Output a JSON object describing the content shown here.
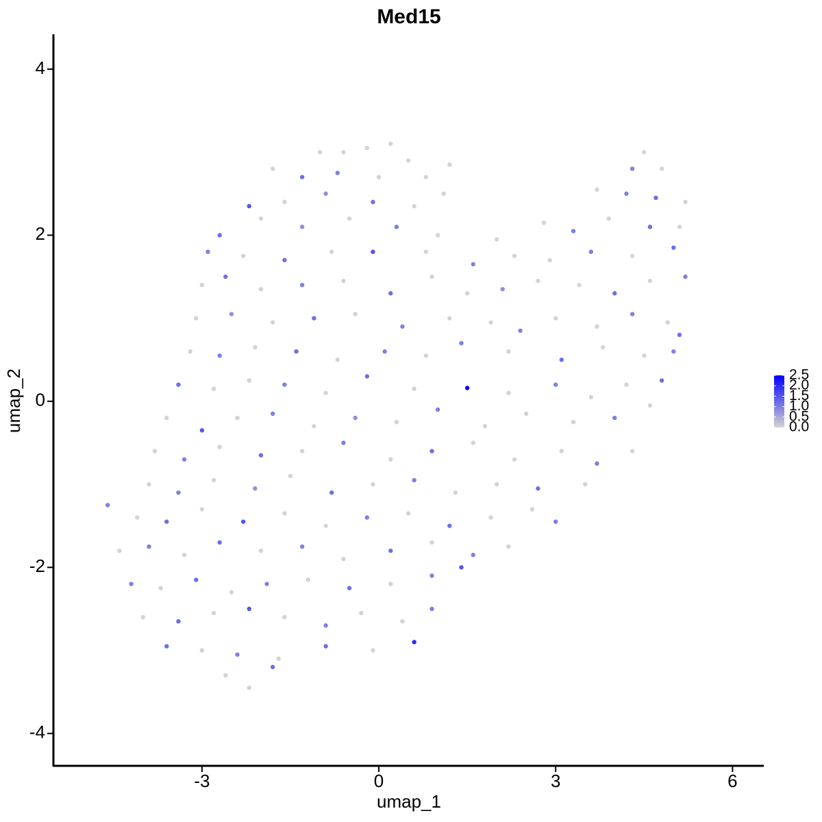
{
  "chart_data": {
    "type": "scatter",
    "title": "Med15",
    "x_label": "umap_1",
    "y_label": "umap_2",
    "xlim": [
      -5.52,
      6.53
    ],
    "ylim": [
      -4.39,
      4.42
    ],
    "xticks": [
      -3,
      0,
      3,
      6
    ],
    "yticks": [
      -4,
      -2,
      0,
      2,
      4
    ],
    "color_low": "#d3d3d3",
    "color_high": "#0000ff",
    "colorbar_lim": [
      0,
      2.5
    ],
    "colorbar_ticks": [
      {
        "value": 0,
        "label": "0.0"
      },
      {
        "value": 0.5,
        "label": "0.5"
      },
      {
        "value": 1,
        "label": "1.0"
      },
      {
        "value": 1.5,
        "label": "1.5"
      },
      {
        "value": 2,
        "label": "2.0"
      },
      {
        "value": 2.5,
        "label": "2.5"
      }
    ],
    "x": [
      -1.0,
      -0.6,
      -0.2,
      0.2,
      0.5,
      4.5,
      -1.8,
      -1.3,
      -0.7,
      0.0,
      0.8,
      1.2,
      4.3,
      4.8,
      -2.2,
      -1.6,
      -0.9,
      -0.1,
      0.6,
      1.1,
      3.7,
      4.2,
      4.7,
      5.2,
      -2.7,
      -2.0,
      -1.3,
      -0.5,
      0.3,
      1.0,
      2.0,
      2.8,
      3.3,
      3.9,
      4.6,
      5.1,
      -2.9,
      -2.3,
      -1.6,
      -0.8,
      -0.1,
      0.8,
      1.6,
      2.3,
      2.9,
      3.6,
      4.3,
      5.0,
      -3.0,
      -2.6,
      -2.0,
      -1.3,
      -0.6,
      0.2,
      0.9,
      1.5,
      2.1,
      2.7,
      3.4,
      4.0,
      4.6,
      5.2,
      -3.1,
      -2.5,
      -1.8,
      -1.1,
      -0.4,
      0.4,
      1.2,
      1.9,
      2.4,
      3.0,
      3.7,
      4.3,
      4.9,
      5.1,
      -3.2,
      -2.7,
      -2.1,
      -1.4,
      -0.7,
      0.1,
      0.8,
      1.4,
      2.2,
      3.1,
      3.8,
      4.5,
      5.0,
      -3.4,
      -2.8,
      -2.2,
      -1.6,
      -0.9,
      -0.2,
      0.6,
      1.5,
      2.2,
      3.0,
      3.6,
      4.2,
      4.8,
      -3.6,
      -3.0,
      -2.4,
      -1.8,
      -1.1,
      -0.4,
      0.3,
      1.0,
      1.8,
      2.5,
      3.3,
      4.0,
      4.6,
      -3.8,
      -3.3,
      -2.7,
      -2.0,
      -1.3,
      -0.6,
      0.2,
      0.9,
      1.6,
      2.3,
      3.1,
      3.7,
      4.3,
      -3.9,
      -3.4,
      -2.8,
      -2.1,
      -1.5,
      -0.8,
      -0.1,
      0.6,
      1.3,
      2.0,
      2.7,
      3.5,
      -4.6,
      -4.1,
      -3.6,
      -3.0,
      -2.3,
      -1.6,
      -0.9,
      -0.2,
      0.5,
      1.2,
      1.9,
      2.6,
      3.0,
      -4.4,
      -3.9,
      -3.3,
      -2.7,
      -2.0,
      -1.3,
      -0.6,
      0.2,
      0.9,
      1.6,
      2.2,
      -4.2,
      -3.7,
      -3.1,
      -2.5,
      -1.9,
      -1.2,
      -0.5,
      0.2,
      0.9,
      1.4,
      -4.0,
      -3.4,
      -2.8,
      -2.2,
      -1.6,
      -0.9,
      -0.3,
      0.4,
      0.9,
      -3.6,
      -3.0,
      -2.4,
      -1.7,
      -0.9,
      -0.1,
      0.6,
      -2.6,
      -2.2,
      -1.8
    ],
    "values": [
      3.0,
      3.0,
      3.05,
      3.1,
      2.9,
      3.0,
      2.8,
      2.7,
      2.75,
      2.7,
      2.7,
      2.85,
      2.8,
      2.8,
      2.35,
      2.4,
      2.5,
      2.4,
      2.35,
      2.5,
      2.55,
      2.5,
      2.45,
      2.4,
      2.0,
      2.2,
      2.1,
      2.2,
      2.1,
      2.0,
      1.95,
      2.15,
      2.05,
      2.2,
      2.1,
      2.1,
      1.8,
      1.75,
      1.7,
      1.8,
      1.8,
      1.8,
      1.65,
      1.75,
      1.7,
      1.8,
      1.75,
      1.85,
      1.4,
      1.5,
      1.35,
      1.4,
      1.45,
      1.3,
      1.5,
      1.3,
      1.35,
      1.45,
      1.4,
      1.3,
      1.45,
      1.5,
      1.0,
      1.05,
      0.95,
      1.0,
      1.05,
      0.9,
      1.0,
      0.95,
      0.85,
      1.0,
      0.9,
      1.05,
      0.95,
      0.8,
      0.6,
      0.55,
      0.65,
      0.6,
      0.5,
      0.6,
      0.55,
      0.7,
      0.6,
      0.5,
      0.65,
      0.55,
      0.6,
      0.2,
      0.15,
      0.25,
      0.2,
      0.1,
      0.3,
      0.15,
      0.16,
      0.1,
      0.2,
      0.05,
      0.2,
      0.25,
      -0.2,
      -0.35,
      -0.2,
      -0.15,
      -0.3,
      -0.2,
      -0.25,
      -0.1,
      -0.3,
      -0.15,
      -0.25,
      -0.2,
      -0.05,
      -0.6,
      -0.7,
      -0.55,
      -0.65,
      -0.6,
      -0.5,
      -0.7,
      -0.6,
      -0.5,
      -0.7,
      -0.6,
      -0.75,
      -0.6,
      -1.0,
      -1.1,
      -0.95,
      -1.05,
      -0.9,
      -1.1,
      -1.0,
      -0.95,
      -1.1,
      -1.0,
      -1.05,
      -1.0,
      -1.25,
      -1.4,
      -1.45,
      -1.3,
      -1.45,
      -1.35,
      -1.5,
      -1.4,
      -1.35,
      -1.5,
      -1.4,
      -1.3,
      -1.45,
      -1.8,
      -1.75,
      -1.85,
      -1.7,
      -1.8,
      -1.75,
      -1.9,
      -1.8,
      -1.7,
      -1.85,
      -1.75,
      -2.2,
      -2.25,
      -2.15,
      -2.3,
      -2.2,
      -2.15,
      -2.25,
      -2.2,
      -2.1,
      -2.0,
      -2.6,
      -2.65,
      -2.55,
      -2.5,
      -2.6,
      -2.7,
      -2.55,
      -2.65,
      -2.5,
      -2.95,
      -3.0,
      -3.05,
      -3.1,
      -2.95,
      -3.0,
      -2.9,
      -3.3,
      -3.45,
      -3.2
    ],
    "expression": [
      0,
      0,
      0,
      0,
      0,
      0,
      0,
      1.2,
      1.0,
      0,
      0,
      0,
      1.0,
      0,
      1.5,
      0,
      0.8,
      1.2,
      0,
      0,
      0,
      1.0,
      1.2,
      0,
      1.2,
      0,
      0.8,
      0,
      1.0,
      0,
      0,
      0,
      1.0,
      0,
      1.2,
      0,
      1.0,
      0,
      1.2,
      0,
      1.5,
      0,
      1.0,
      0,
      0,
      1.0,
      0,
      1.2,
      0,
      1.2,
      0,
      1.0,
      0,
      1.2,
      0,
      0,
      0.8,
      0,
      0,
      1.2,
      0,
      1.0,
      0,
      0.8,
      0,
      1.2,
      0,
      1.0,
      0,
      0,
      1.0,
      0,
      0,
      1.0,
      0,
      1.2,
      0,
      1.0,
      0,
      1.2,
      0,
      1.0,
      0,
      1.0,
      0,
      1.2,
      0,
      0,
      1.0,
      1.2,
      0,
      0,
      1.0,
      0,
      1.2,
      0,
      2.5,
      0,
      1.0,
      0,
      0,
      1.2,
      0,
      1.5,
      0,
      1.0,
      0,
      0.8,
      0,
      1.0,
      0,
      0,
      0,
      1.0,
      0,
      0,
      1.0,
      0,
      1.2,
      0,
      1.0,
      0,
      1.2,
      0,
      0,
      0,
      1.0,
      0,
      0,
      1.0,
      0,
      0.8,
      0,
      1.2,
      0,
      1.0,
      0,
      0,
      1.2,
      0,
      1.0,
      0,
      1.2,
      0,
      1.5,
      0,
      0,
      1.0,
      0,
      1.2,
      0,
      0,
      1.0,
      0,
      1.0,
      0,
      1.2,
      0,
      1.0,
      0,
      1.2,
      0,
      1.0,
      0,
      1.0,
      0,
      1.2,
      0,
      1.0,
      0,
      1.2,
      0,
      1.0,
      1.5,
      0,
      1.2,
      0,
      1.5,
      0,
      1.0,
      0,
      0,
      1.0,
      1.2,
      0,
      1.0,
      0,
      1.2,
      0,
      2.0,
      0,
      0,
      1.2
    ]
  }
}
